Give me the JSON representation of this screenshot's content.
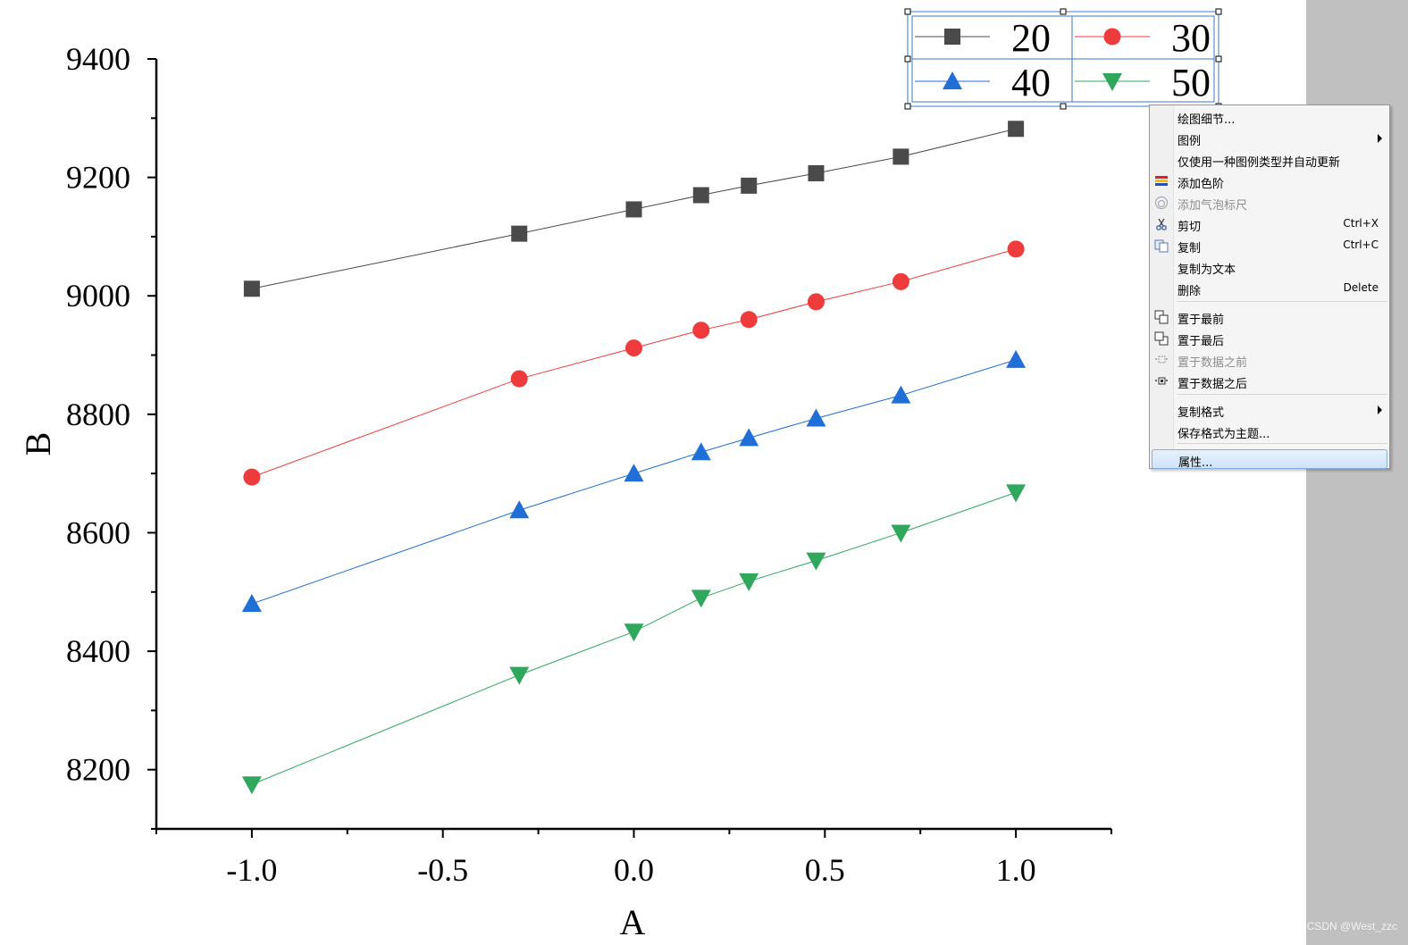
{
  "chart_data": {
    "type": "line",
    "xlabel": "A",
    "ylabel": "B",
    "xlim": [
      -1.25,
      1.25
    ],
    "ylim": [
      8100,
      9400
    ],
    "x_ticks": [
      -1.0,
      -0.5,
      0.0,
      0.5,
      1.0
    ],
    "x_tick_labels": [
      "-1.0",
      "-0.5",
      "0.0",
      "0.5",
      "1.0"
    ],
    "y_ticks": [
      8200,
      8400,
      8600,
      8800,
      9000,
      9200,
      9400
    ],
    "y_tick_labels": [
      "8200",
      "8400",
      "8600",
      "8800",
      "9000",
      "9200",
      "9400"
    ],
    "x": [
      -1.0,
      -0.3,
      0.0,
      0.176,
      0.301,
      0.477,
      0.699,
      1.0
    ],
    "series": [
      {
        "name": "20",
        "marker": "square",
        "color": "#4a4a4a",
        "values": [
          9012,
          9105,
          9146,
          9170,
          9186,
          9207,
          9235,
          9282
        ]
      },
      {
        "name": "30",
        "marker": "circle",
        "color": "#ef3b3b",
        "values": [
          8694,
          8860,
          8912,
          8942,
          8960,
          8990,
          9024,
          9079
        ]
      },
      {
        "name": "40",
        "marker": "triangle-up",
        "color": "#1f6fd6",
        "values": [
          8480,
          8638,
          8700,
          8736,
          8760,
          8793,
          8832,
          8892
        ]
      },
      {
        "name": "50",
        "marker": "triangle-down",
        "color": "#2fa85e",
        "values": [
          8175,
          8360,
          8433,
          8490,
          8518,
          8553,
          8600,
          8668
        ]
      }
    ],
    "legend_position": "top-right"
  },
  "context_menu": {
    "items": [
      {
        "label": "绘图细节...",
        "shortcut": "",
        "submenu": false,
        "disabled": false,
        "icon": ""
      },
      {
        "label": "图例",
        "shortcut": "",
        "submenu": true,
        "disabled": false,
        "icon": ""
      },
      {
        "label": "仅使用一种图例类型并自动更新",
        "shortcut": "",
        "submenu": false,
        "disabled": false,
        "icon": ""
      },
      {
        "label": "添加色阶",
        "shortcut": "",
        "submenu": false,
        "disabled": false,
        "icon": "color-scale-icon"
      },
      {
        "label": "添加气泡标尺",
        "shortcut": "",
        "submenu": false,
        "disabled": true,
        "icon": "bubble-scale-icon"
      },
      {
        "label": "剪切",
        "shortcut": "Ctrl+X",
        "submenu": false,
        "disabled": false,
        "icon": "scissors-icon"
      },
      {
        "label": "复制",
        "shortcut": "Ctrl+C",
        "submenu": false,
        "disabled": false,
        "icon": "copy-icon"
      },
      {
        "label": "复制为文本",
        "shortcut": "",
        "submenu": false,
        "disabled": false,
        "icon": ""
      },
      {
        "label": "删除",
        "shortcut": "Delete",
        "submenu": false,
        "disabled": false,
        "icon": ""
      },
      {
        "label": "置于最前",
        "shortcut": "",
        "submenu": false,
        "disabled": false,
        "icon": "bring-to-front-icon"
      },
      {
        "label": "置于最后",
        "shortcut": "",
        "submenu": false,
        "disabled": false,
        "icon": "send-to-back-icon"
      },
      {
        "label": "置于数据之前",
        "shortcut": "",
        "submenu": false,
        "disabled": true,
        "icon": "front-of-data-icon"
      },
      {
        "label": "置于数据之后",
        "shortcut": "",
        "submenu": false,
        "disabled": false,
        "icon": "behind-data-icon"
      },
      {
        "label": "复制格式",
        "shortcut": "",
        "submenu": true,
        "disabled": false,
        "icon": ""
      },
      {
        "label": "保存格式为主题...",
        "shortcut": "",
        "submenu": false,
        "disabled": false,
        "icon": ""
      },
      {
        "label": "属性...",
        "shortcut": "",
        "submenu": false,
        "disabled": false,
        "icon": "",
        "highlighted": true
      }
    ]
  },
  "watermark": "CSDN @West_zzc",
  "colors": {
    "menu_bg": "#f5f5f5",
    "selection_blue": "#3b78c9",
    "margin_gray": "#c0c0c0"
  }
}
